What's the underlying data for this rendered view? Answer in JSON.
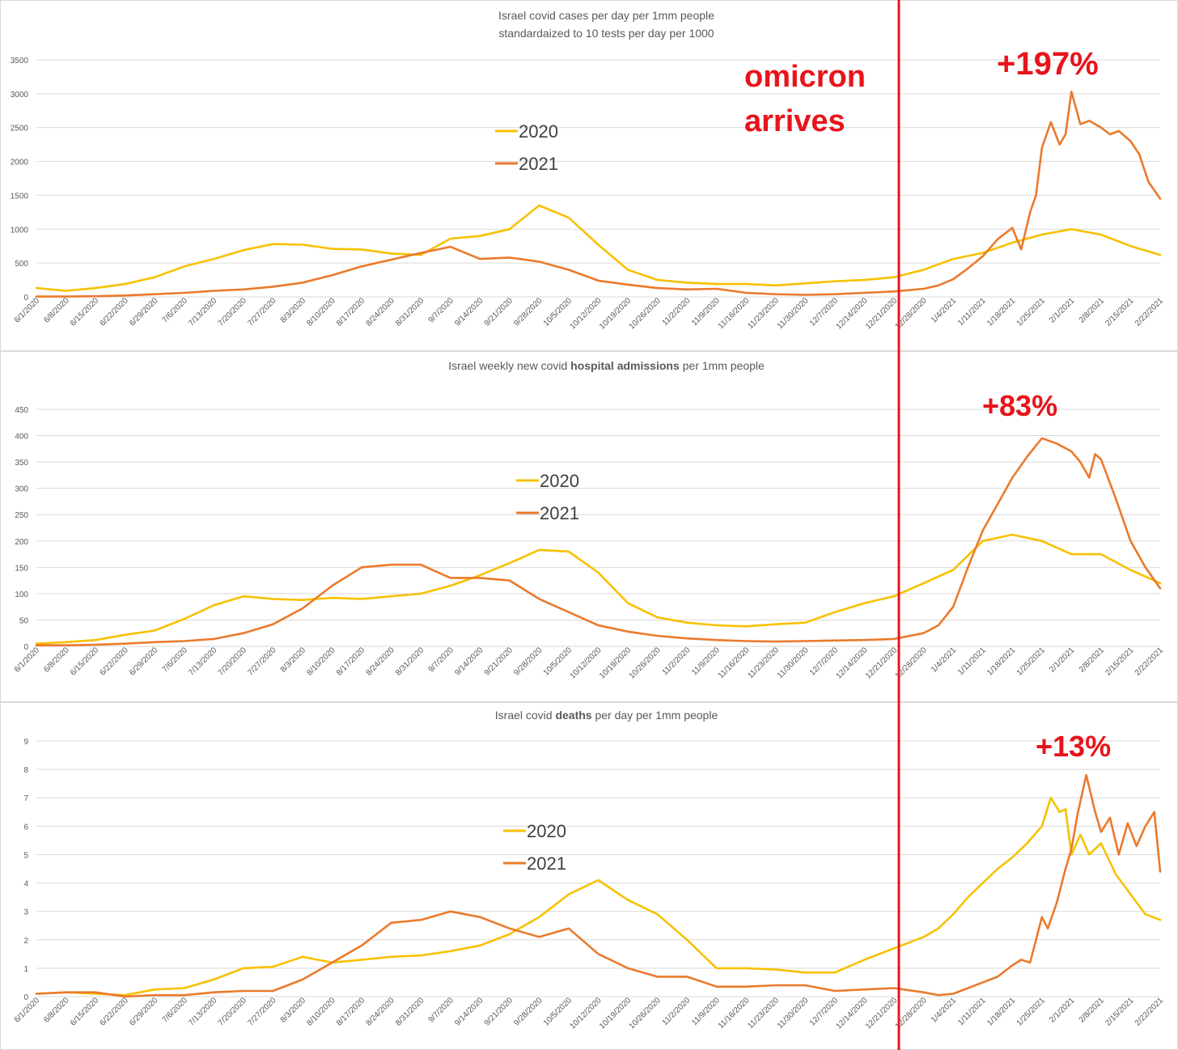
{
  "chart_data": [
    {
      "type": "line",
      "title_lines": [
        [
          {
            "text": "Israel covid cases per day per 1mm people",
            "bold": false
          }
        ],
        [
          {
            "text": "standardaized to 10 tests per day per 1000",
            "bold": false
          }
        ]
      ],
      "ylim": [
        0,
        3500
      ],
      "yticks": [
        0,
        500,
        1000,
        1500,
        2000,
        2500,
        3000,
        3500
      ],
      "xlim": [
        0,
        38
      ],
      "x_tick_labels": [
        "6/1/2020",
        "6/8/2020",
        "6/15/2020",
        "6/22/2020",
        "6/29/2020",
        "7/6/2020",
        "7/13/2020",
        "7/20/2020",
        "7/27/2020",
        "8/3/2020",
        "8/10/2020",
        "8/17/2020",
        "8/24/2020",
        "8/31/2020",
        "9/7/2020",
        "9/14/2020",
        "9/21/2020",
        "9/28/2020",
        "10/5/2020",
        "10/12/2020",
        "10/19/2020",
        "10/26/2020",
        "11/2/2020",
        "11/9/2020",
        "11/16/2020",
        "11/23/2020",
        "11/30/2020",
        "12/7/2020",
        "12/14/2020",
        "12/21/2020",
        "12/28/2020",
        "1/4/2021",
        "1/11/2021",
        "1/18/2021",
        "1/25/2021",
        "2/1/2021",
        "2/8/2021",
        "2/15/2021",
        "2/22/2021"
      ],
      "annotation": "+197%",
      "series": [
        {
          "name": "2020",
          "color": "#f7c100",
          "x": [
            0,
            1,
            2,
            3,
            4,
            5,
            6,
            7,
            8,
            9,
            10,
            11,
            12,
            13,
            14,
            15,
            16,
            17,
            18,
            19,
            20,
            21,
            22,
            23,
            24,
            25,
            26,
            27,
            28,
            29,
            30,
            31,
            32,
            33,
            34,
            35,
            36,
            37,
            38
          ],
          "values": [
            130,
            90,
            130,
            190,
            290,
            450,
            560,
            690,
            780,
            770,
            710,
            700,
            640,
            620,
            860,
            900,
            1000,
            1350,
            1170,
            770,
            400,
            250,
            210,
            190,
            190,
            170,
            200,
            230,
            250,
            290,
            400,
            560,
            650,
            800,
            920,
            1000,
            920,
            750,
            620
          ]
        },
        {
          "name": "2021",
          "color": "#ea7a2c",
          "x": [
            0,
            1,
            2,
            3,
            4,
            5,
            6,
            7,
            8,
            9,
            10,
            11,
            12,
            13,
            14,
            15,
            16,
            17,
            18,
            19,
            20,
            21,
            22,
            23,
            24,
            25,
            26,
            27,
            28,
            29,
            30,
            30.5,
            31,
            31.5,
            32,
            32.5,
            33,
            33.3,
            33.6,
            33.8,
            34,
            34.3,
            34.6,
            34.8,
            35,
            35.3,
            35.6,
            36,
            36.3,
            36.6,
            37,
            37.3,
            37.6,
            38
          ],
          "values": [
            5,
            5,
            10,
            20,
            40,
            60,
            90,
            110,
            150,
            210,
            320,
            450,
            550,
            650,
            740,
            560,
            580,
            520,
            400,
            240,
            180,
            130,
            110,
            120,
            60,
            40,
            30,
            40,
            60,
            80,
            120,
            170,
            260,
            420,
            600,
            850,
            1020,
            700,
            1250,
            1500,
            2200,
            2580,
            2250,
            2400,
            3030,
            2550,
            2600,
            2500,
            2400,
            2450,
            2300,
            2100,
            1700,
            1450
          ]
        }
      ]
    },
    {
      "type": "line",
      "title_lines": [
        [
          {
            "text": "Israel weekly new covid ",
            "bold": false
          },
          {
            "text": "hospital admissions",
            "bold": true
          },
          {
            "text": " per 1mm people",
            "bold": false
          }
        ]
      ],
      "ylim": [
        0,
        450
      ],
      "yticks": [
        0,
        50,
        100,
        150,
        200,
        250,
        300,
        350,
        400,
        450
      ],
      "xlim": [
        0,
        38
      ],
      "x_tick_labels": [
        "6/1/2020",
        "6/8/2020",
        "6/15/2020",
        "6/22/2020",
        "6/29/2020",
        "7/6/2020",
        "7/13/2020",
        "7/20/2020",
        "7/27/2020",
        "8/3/2020",
        "8/10/2020",
        "8/17/2020",
        "8/24/2020",
        "8/31/2020",
        "9/7/2020",
        "9/14/2020",
        "9/21/2020",
        "9/28/2020",
        "10/5/2020",
        "10/12/2020",
        "10/19/2020",
        "10/26/2020",
        "11/2/2020",
        "11/9/2020",
        "11/16/2020",
        "11/23/2020",
        "11/30/2020",
        "12/7/2020",
        "12/14/2020",
        "12/21/2020",
        "12/28/2020",
        "1/4/2021",
        "1/11/2021",
        "1/18/2021",
        "1/25/2021",
        "2/1/2021",
        "2/8/2021",
        "2/15/2021",
        "2/22/2021"
      ],
      "annotation": "+83%",
      "series": [
        {
          "name": "2020",
          "color": "#f7c100",
          "x": [
            0,
            1,
            2,
            3,
            4,
            5,
            6,
            7,
            8,
            9,
            10,
            11,
            12,
            13,
            14,
            15,
            16,
            17,
            18,
            19,
            20,
            21,
            22,
            23,
            24,
            25,
            26,
            27,
            28,
            29,
            30,
            31,
            32,
            33,
            34,
            35,
            36,
            37,
            38
          ],
          "values": [
            5,
            8,
            12,
            22,
            30,
            52,
            78,
            95,
            90,
            88,
            92,
            90,
            95,
            100,
            115,
            135,
            158,
            183,
            180,
            140,
            82,
            55,
            45,
            40,
            38,
            42,
            45,
            65,
            82,
            95,
            120,
            145,
            200,
            212,
            200,
            175,
            175,
            145,
            120
          ]
        },
        {
          "name": "2021",
          "color": "#ea7a2c",
          "x": [
            0,
            1,
            2,
            3,
            4,
            5,
            6,
            7,
            8,
            9,
            10,
            11,
            12,
            13,
            14,
            15,
            16,
            17,
            18,
            19,
            20,
            21,
            22,
            23,
            24,
            25,
            26,
            27,
            28,
            29,
            30,
            30.5,
            31,
            31.5,
            32,
            32.5,
            33,
            33.5,
            34,
            34.5,
            35,
            35.3,
            35.6,
            35.8,
            36,
            36.5,
            37,
            37.5,
            38
          ],
          "values": [
            2,
            2,
            3,
            5,
            8,
            10,
            14,
            25,
            42,
            72,
            115,
            150,
            155,
            155,
            130,
            130,
            125,
            90,
            65,
            40,
            28,
            20,
            15,
            12,
            10,
            9,
            10,
            11,
            12,
            14,
            25,
            40,
            75,
            150,
            220,
            270,
            320,
            360,
            395,
            385,
            370,
            350,
            320,
            365,
            355,
            280,
            200,
            150,
            110
          ]
        }
      ]
    },
    {
      "type": "line",
      "title_lines": [
        [
          {
            "text": "Israel covid ",
            "bold": false
          },
          {
            "text": "deaths",
            "bold": true
          },
          {
            "text": " per day per 1mm people",
            "bold": false
          }
        ]
      ],
      "ylim": [
        0,
        9
      ],
      "yticks": [
        0,
        1,
        2,
        3,
        4,
        5,
        6,
        7,
        8,
        9
      ],
      "xlim": [
        0,
        38
      ],
      "x_tick_labels": [
        "6/1/2020",
        "6/8/2020",
        "6/15/2020",
        "6/22/2020",
        "6/29/2020",
        "7/6/2020",
        "7/13/2020",
        "7/20/2020",
        "7/27/2020",
        "8/3/2020",
        "8/10/2020",
        "8/17/2020",
        "8/24/2020",
        "8/31/2020",
        "9/7/2020",
        "9/14/2020",
        "9/21/2020",
        "9/28/2020",
        "10/5/2020",
        "10/12/2020",
        "10/19/2020",
        "10/26/2020",
        "11/2/2020",
        "11/9/2020",
        "11/16/2020",
        "11/23/2020",
        "11/30/2020",
        "12/7/2020",
        "12/14/2020",
        "12/21/2020",
        "12/28/2020",
        "1/4/2021",
        "1/11/2021",
        "1/18/2021",
        "1/25/2021",
        "2/1/2021",
        "2/8/2021",
        "2/15/2021",
        "2/22/2021"
      ],
      "annotation": "+13%",
      "series": [
        {
          "name": "2020",
          "color": "#f7c100",
          "x": [
            0,
            1,
            2,
            3,
            4,
            5,
            6,
            7,
            8,
            9,
            10,
            11,
            12,
            13,
            14,
            15,
            16,
            17,
            18,
            19,
            20,
            21,
            22,
            23,
            24,
            25,
            26,
            27,
            28,
            29,
            30,
            30.5,
            31,
            31.5,
            32,
            32.5,
            33,
            33.5,
            34,
            34.3,
            34.6,
            34.8,
            35,
            35.3,
            35.6,
            36,
            36.5,
            37,
            37.5,
            38
          ],
          "values": [
            0.1,
            0.15,
            0.1,
            0.05,
            0.25,
            0.3,
            0.6,
            1.0,
            1.05,
            1.4,
            1.2,
            1.3,
            1.4,
            1.45,
            1.6,
            1.8,
            2.2,
            2.8,
            3.6,
            4.1,
            3.4,
            2.9,
            2.0,
            1.0,
            1.0,
            0.95,
            0.85,
            0.85,
            1.3,
            1.7,
            2.1,
            2.4,
            2.9,
            3.5,
            4.0,
            4.5,
            4.9,
            5.4,
            6.0,
            7.0,
            6.5,
            6.6,
            5.0,
            5.7,
            5.0,
            5.4,
            4.3,
            3.6,
            2.9,
            2.7
          ]
        },
        {
          "name": "2021",
          "color": "#ea7a2c",
          "x": [
            0,
            1,
            2,
            3,
            4,
            5,
            6,
            7,
            8,
            9,
            10,
            11,
            12,
            13,
            14,
            15,
            16,
            17,
            18,
            19,
            20,
            21,
            22,
            23,
            24,
            25,
            26,
            27,
            28,
            29,
            30,
            30.5,
            31,
            31.5,
            32,
            32.5,
            33,
            33.3,
            33.6,
            34,
            34.2,
            34.5,
            34.8,
            35,
            35.2,
            35.5,
            35.8,
            36,
            36.3,
            36.6,
            36.9,
            37.2,
            37.5,
            37.8,
            38
          ],
          "values": [
            0.1,
            0.15,
            0.15,
            0.0,
            0.05,
            0.05,
            0.15,
            0.2,
            0.2,
            0.6,
            1.2,
            1.8,
            2.6,
            2.7,
            3.0,
            2.8,
            2.4,
            2.1,
            2.4,
            1.5,
            1.0,
            0.7,
            0.7,
            0.35,
            0.35,
            0.4,
            0.4,
            0.2,
            0.25,
            0.3,
            0.15,
            0.05,
            0.1,
            0.3,
            0.5,
            0.7,
            1.1,
            1.3,
            1.2,
            2.8,
            2.4,
            3.3,
            4.5,
            5.2,
            6.4,
            7.8,
            6.5,
            5.8,
            6.3,
            5.0,
            6.1,
            5.3,
            6.0,
            6.5,
            4.4
          ]
        }
      ]
    }
  ],
  "overlay": {
    "event_label_line1": "omicron",
    "event_label_line2": "arrives",
    "event_color": "#e8141b"
  }
}
